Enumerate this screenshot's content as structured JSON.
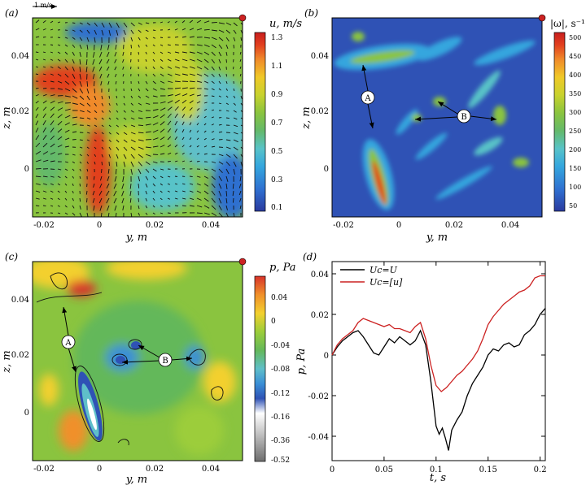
{
  "panels": {
    "a": {
      "tag": "(a)",
      "xlabel": "y, m",
      "ylabel": "z, m",
      "cbar_title": "u, m/s",
      "cbar_ticks": [
        "1.3",
        "1.1",
        "0.9",
        "0.7",
        "0.5",
        "0.3",
        "0.1"
      ],
      "scale_label": "1 m/s",
      "x_ticks": [
        "-0.02",
        "0",
        "0.02",
        "0.04"
      ],
      "y_ticks": [
        "0.04",
        "0.02",
        "0"
      ]
    },
    "b": {
      "tag": "(b)",
      "xlabel": "y, m",
      "ylabel": "z, m",
      "cbar_title": "|ω|, s⁻¹",
      "cbar_ticks": [
        "500",
        "450",
        "400",
        "350",
        "300",
        "250",
        "200",
        "150",
        "100",
        "50"
      ],
      "marker_a": "A",
      "marker_b": "B",
      "x_ticks": [
        "-0.02",
        "0",
        "0.02",
        "0.04"
      ],
      "y_ticks": [
        "0.04",
        "0.02",
        "0"
      ]
    },
    "c": {
      "tag": "(c)",
      "xlabel": "y, m",
      "ylabel": "z, m",
      "cbar_title": "p, Pa",
      "cbar_ticks": [
        "0.04",
        "0",
        "-0.04",
        "-0.08",
        "-0.12",
        "-0.16",
        "-0.36",
        "-0.52"
      ],
      "marker_a": "A",
      "marker_b": "B",
      "x_ticks": [
        "-0.02",
        "0",
        "0.02",
        "0.04"
      ],
      "y_ticks": [
        "0.04",
        "0.02",
        "0"
      ]
    },
    "d": {
      "tag": "(d)",
      "xlabel": "t, s",
      "ylabel": "p, Pa"
    }
  },
  "colors": {
    "jet": [
      "#2a3a9e",
      "#2f6fd0",
      "#34a6de",
      "#58c3c8",
      "#64b96b",
      "#8ac43f",
      "#c8d22e",
      "#f0c928",
      "#f08a2a",
      "#e2401f",
      "#c81e1e"
    ],
    "pressure": [
      "#d8322a",
      "#f0902a",
      "#f3d02e",
      "#9ccd3a",
      "#64b85a",
      "#5fbfc9",
      "#3a8fd6",
      "#2f52b5",
      "#ffffff",
      "#bdbdbd",
      "#6d6d6d"
    ],
    "marker_dot": "#cc2222",
    "line_black": "#000000",
    "line_red": "#cc2222"
  },
  "chart_data": {
    "type": "line",
    "title": "",
    "xlabel": "t, s",
    "ylabel": "p, Pa",
    "xlim": [
      0,
      0.205
    ],
    "ylim": [
      -0.052,
      0.046
    ],
    "x_ticks": [
      0,
      0.05,
      0.1,
      0.15,
      0.2
    ],
    "y_ticks": [
      0.04,
      0.02,
      0,
      -0.02,
      -0.04
    ],
    "x_tick_labels": [
      "0",
      "0.05",
      "0.1",
      "0.15",
      "0.2"
    ],
    "y_tick_labels": [
      "0.04",
      "0.02",
      "0",
      "-0.02",
      "-0.04"
    ],
    "legend_position": "top-left",
    "series": [
      {
        "name": "Uc=U",
        "color": "#000000",
        "x": [
          0,
          0.005,
          0.01,
          0.015,
          0.02,
          0.025,
          0.03,
          0.035,
          0.04,
          0.045,
          0.05,
          0.055,
          0.06,
          0.065,
          0.07,
          0.075,
          0.08,
          0.085,
          0.09,
          0.095,
          0.1,
          0.103,
          0.106,
          0.109,
          0.112,
          0.115,
          0.12,
          0.125,
          0.13,
          0.135,
          0.14,
          0.145,
          0.15,
          0.155,
          0.16,
          0.165,
          0.17,
          0.175,
          0.18,
          0.185,
          0.19,
          0.195,
          0.2,
          0.205
        ],
        "y": [
          0,
          0.004,
          0.007,
          0.009,
          0.011,
          0.012,
          0.009,
          0.005,
          0.001,
          0,
          0.004,
          0.008,
          0.006,
          0.009,
          0.007,
          0.005,
          0.007,
          0.012,
          0.005,
          -0.013,
          -0.035,
          -0.039,
          -0.036,
          -0.041,
          -0.047,
          -0.037,
          -0.032,
          -0.028,
          -0.02,
          -0.014,
          -0.01,
          -0.006,
          0,
          0.003,
          0.002,
          0.005,
          0.006,
          0.004,
          0.005,
          0.01,
          0.012,
          0.015,
          0.02,
          0.023
        ]
      },
      {
        "name": "Uc=[u]",
        "color": "#cc2222",
        "x": [
          0,
          0.005,
          0.01,
          0.015,
          0.02,
          0.025,
          0.03,
          0.035,
          0.04,
          0.045,
          0.05,
          0.055,
          0.06,
          0.065,
          0.07,
          0.075,
          0.08,
          0.085,
          0.09,
          0.095,
          0.1,
          0.105,
          0.11,
          0.115,
          0.12,
          0.125,
          0.13,
          0.135,
          0.14,
          0.145,
          0.15,
          0.155,
          0.16,
          0.165,
          0.17,
          0.175,
          0.18,
          0.185,
          0.19,
          0.195,
          0.2,
          0.205
        ],
        "y": [
          0,
          0.005,
          0.008,
          0.01,
          0.012,
          0.016,
          0.018,
          0.017,
          0.016,
          0.015,
          0.014,
          0.015,
          0.013,
          0.013,
          0.012,
          0.011,
          0.014,
          0.016,
          0.008,
          -0.005,
          -0.015,
          -0.018,
          -0.016,
          -0.013,
          -0.01,
          -0.008,
          -0.005,
          -0.002,
          0.002,
          0.008,
          0.015,
          0.019,
          0.022,
          0.025,
          0.027,
          0.029,
          0.031,
          0.032,
          0.034,
          0.038,
          0.039,
          0.039
        ]
      }
    ]
  }
}
